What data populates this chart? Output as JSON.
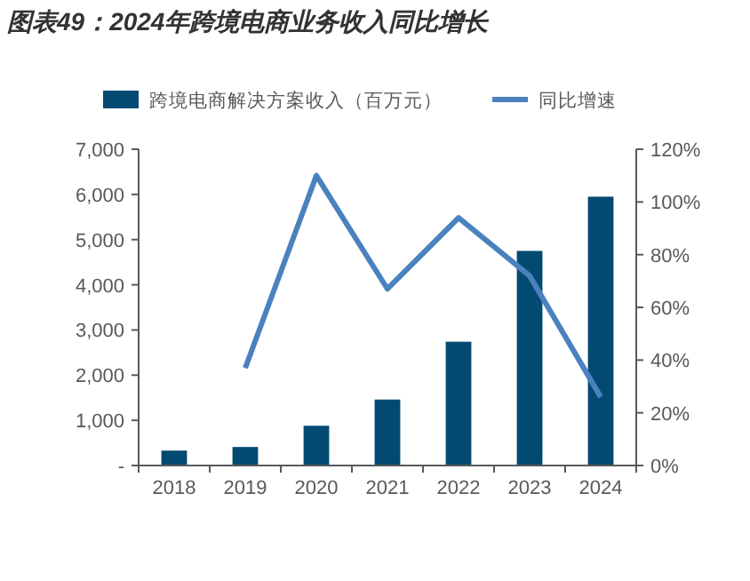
{
  "chart_data": {
    "type": "bar",
    "title": "图表49：2024年跨境电商业务收入同比增长",
    "categories": [
      "2018",
      "2019",
      "2020",
      "2021",
      "2022",
      "2023",
      "2024"
    ],
    "series": [
      {
        "name": "跨境电商解决方案收入（百万元）",
        "color": "#034a72",
        "values": [
          330,
          410,
          880,
          1460,
          2740,
          4750,
          5950
        ]
      },
      {
        "name": "同比增速",
        "type": "line",
        "axis": "y2",
        "color": "#4a81bf",
        "values": [
          null,
          37,
          110,
          67,
          94,
          72,
          26
        ]
      }
    ],
    "ylim": [
      0,
      7000
    ],
    "yticks": [
      {
        "value": 0,
        "label": "-"
      },
      {
        "value": 1000,
        "label": "1,000"
      },
      {
        "value": 2000,
        "label": "2,000"
      },
      {
        "value": 3000,
        "label": "3,000"
      },
      {
        "value": 4000,
        "label": "4,000"
      },
      {
        "value": 5000,
        "label": "5,000"
      },
      {
        "value": 6000,
        "label": "6,000"
      },
      {
        "value": 7000,
        "label": "7,000"
      }
    ],
    "y2lim": [
      0,
      120
    ],
    "y2ticks": [
      {
        "value": 0,
        "label": "0%"
      },
      {
        "value": 20,
        "label": "20%"
      },
      {
        "value": 40,
        "label": "40%"
      },
      {
        "value": 60,
        "label": "60%"
      },
      {
        "value": 80,
        "label": "80%"
      },
      {
        "value": 100,
        "label": "100%"
      },
      {
        "value": 120,
        "label": "120%"
      }
    ],
    "legend": "top",
    "grid": false
  }
}
